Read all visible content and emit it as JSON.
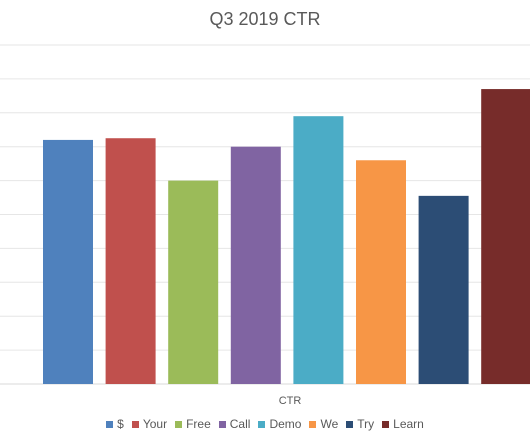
{
  "chart_data": {
    "type": "bar",
    "title": "Q3 2019 CTR",
    "xlabel": "CTR",
    "ylabel": "",
    "categories": [
      "CTR"
    ],
    "series": [
      {
        "name": "$",
        "values": [
          7.2
        ],
        "color": "#4F81BD"
      },
      {
        "name": "Your",
        "values": [
          7.25
        ],
        "color": "#C0504D"
      },
      {
        "name": "Free",
        "values": [
          6.0
        ],
        "color": "#9BBB59"
      },
      {
        "name": "Call",
        "values": [
          7.0
        ],
        "color": "#8064A2"
      },
      {
        "name": "Demo",
        "values": [
          7.9
        ],
        "color": "#4BACC6"
      },
      {
        "name": "We",
        "values": [
          6.6
        ],
        "color": "#F79646"
      },
      {
        "name": "Try",
        "values": [
          5.55
        ],
        "color": "#2C4D75"
      },
      {
        "name": "Learn",
        "values": [
          8.7
        ],
        "color": "#772C2A"
      }
    ],
    "ylim": [
      0,
      10
    ],
    "grid": true,
    "legend": "bottom"
  }
}
